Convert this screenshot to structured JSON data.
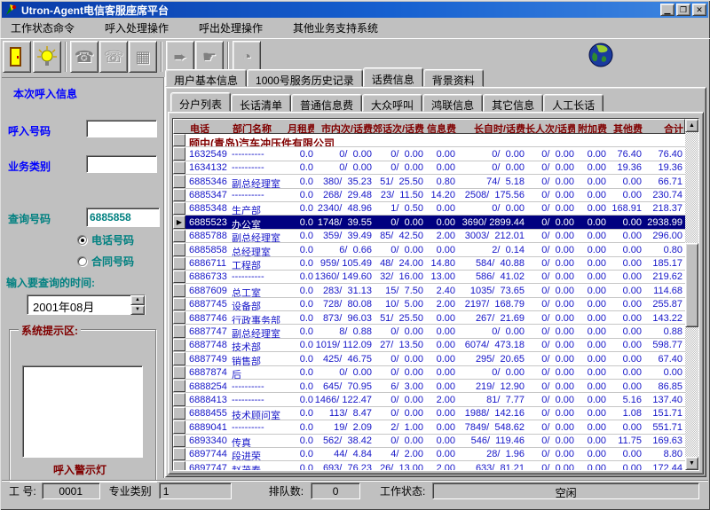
{
  "window": {
    "title": "Utron-Agent电信客服座席平台",
    "minimize": "▁",
    "restore": "❐",
    "close": "✕"
  },
  "menu": {
    "items": [
      "工作状态命令",
      "呼入处理操作",
      "呼出处理操作",
      "其他业务支持系统"
    ]
  },
  "toolbar": {
    "buttons": [
      "exit",
      "lamp",
      "answer-call",
      "hangup-call",
      "keypad",
      "transfer",
      "hand-point",
      "dial"
    ],
    "glyphs": {
      "answer": "☎",
      "hangup": "☏",
      "keypad": "▦",
      "transfer": "➨",
      "hand": "☛",
      "dial": "◔"
    }
  },
  "left_panel": {
    "section_title": "本次呼入信息",
    "caller_number_label": "呼入号码",
    "caller_number_value": "",
    "business_type_label": "业务类别",
    "business_type_value": "",
    "query_number_label": "查询号码",
    "query_number_value": "6885858",
    "radio_phone_label": "电话号码",
    "radio_contract_label": "合同号码",
    "radio_selected": "电话号码",
    "time_label": "输入要查询的时间:",
    "time_value": "2001年08月",
    "prompt_group_label": "系统提示区:",
    "prompt_value": "",
    "warning_label": "呼入警示灯"
  },
  "tabs": {
    "main": [
      "用户基本信息",
      "1000号服务历史记录",
      "话费信息",
      "背景资料"
    ],
    "active_main": "话费信息",
    "sub": [
      "分户列表",
      "长话清单",
      "普通信息费",
      "大众呼叫",
      "鸿联信息",
      "其它信息",
      "人工长话"
    ],
    "active_sub": "分户列表"
  },
  "table": {
    "headers": [
      "电话",
      "部门名称",
      "月租费",
      "市内次/话费",
      "郊话次/话费",
      "信息费",
      "长自时/话费",
      "长人次/话费",
      "附加费",
      "其他费",
      "合计"
    ],
    "group_row": "颐中(青岛)汽车冲压件有限公司",
    "selected_marker": "▶",
    "rows": [
      {
        "cells": [
          "1632549",
          "----------",
          "0.0",
          "0/  0.00",
          "0/  0.00",
          "0.00",
          "0/  0.00",
          "0/  0.00",
          "0.00",
          "76.40",
          "76.40"
        ]
      },
      {
        "cells": [
          "1634132",
          "----------",
          "0.0",
          "0/  0.00",
          "0/  0.00",
          "0.00",
          "0/  0.00",
          "0/  0.00",
          "0.00",
          "19.36",
          "19.36"
        ]
      },
      {
        "cells": [
          "6885346",
          "副总经理室",
          "0.0",
          "380/  35.23",
          "51/  25.50",
          "0.80",
          "74/  5.18",
          "0/  0.00",
          "0.00",
          "0.00",
          "66.71"
        ]
      },
      {
        "cells": [
          "6885347",
          "----------",
          "0.0",
          "268/  29.48",
          "23/  11.50",
          "14.20",
          "2508/  175.56",
          "0/  0.00",
          "0.00",
          "0.00",
          "230.74"
        ]
      },
      {
        "cells": [
          "6885348",
          "生产部",
          "0.0",
          "2340/  48.96",
          "1/  0.50",
          "0.00",
          "0/  0.00",
          "0/  0.00",
          "0.00",
          "168.91",
          "218.37"
        ]
      },
      {
        "cells": [
          "6885523",
          "办公室",
          "0.0",
          "1748/  39.55",
          "0/  0.00",
          "0.00",
          "3690/ 2899.44",
          "0/  0.00",
          "0.00",
          "0.00",
          "2938.99"
        ],
        "selected": true
      },
      {
        "cells": [
          "6885788",
          "副总经理室",
          "0.0",
          "359/  39.49",
          "85/  42.50",
          "2.00",
          "3003/  212.01",
          "0/  0.00",
          "0.00",
          "0.00",
          "296.00"
        ]
      },
      {
        "cells": [
          "6885858",
          "总经理室",
          "0.0",
          "6/  0.66",
          "0/  0.00",
          "0.00",
          "2/  0.14",
          "0/  0.00",
          "0.00",
          "0.00",
          "0.80"
        ]
      },
      {
        "cells": [
          "6886711",
          "工程部",
          "0.0",
          "959/ 105.49",
          "48/  24.00",
          "14.80",
          "584/  40.88",
          "0/  0.00",
          "0.00",
          "0.00",
          "185.17"
        ]
      },
      {
        "cells": [
          "6886733",
          "----------",
          "0.0",
          "1360/ 149.60",
          "32/  16.00",
          "13.00",
          "586/  41.02",
          "0/  0.00",
          "0.00",
          "0.00",
          "219.62"
        ]
      },
      {
        "cells": [
          "6887609",
          "总工室",
          "0.0",
          "283/  31.13",
          "15/  7.50",
          "2.40",
          "1035/  73.65",
          "0/  0.00",
          "0.00",
          "0.00",
          "114.68"
        ]
      },
      {
        "cells": [
          "6887745",
          "设备部",
          "0.0",
          "728/  80.08",
          "10/  5.00",
          "2.00",
          "2197/  168.79",
          "0/  0.00",
          "0.00",
          "0.00",
          "255.87"
        ]
      },
      {
        "cells": [
          "6887746",
          "行政事务部",
          "0.0",
          "873/  96.03",
          "51/  25.50",
          "0.00",
          "267/  21.69",
          "0/  0.00",
          "0.00",
          "0.00",
          "143.22"
        ]
      },
      {
        "cells": [
          "6887747",
          "副总经理室",
          "0.0",
          "8/  0.88",
          "0/  0.00",
          "0.00",
          "0/  0.00",
          "0/  0.00",
          "0.00",
          "0.00",
          "0.88"
        ]
      },
      {
        "cells": [
          "6887748",
          "技术部",
          "0.0",
          "1019/ 112.09",
          "27/  13.50",
          "0.00",
          "6074/  473.18",
          "0/  0.00",
          "0.00",
          "0.00",
          "598.77"
        ]
      },
      {
        "cells": [
          "6887749",
          "销售部",
          "0.0",
          "425/  46.75",
          "0/  0.00",
          "0.00",
          "295/  20.65",
          "0/  0.00",
          "0.00",
          "0.00",
          "67.40"
        ]
      },
      {
        "cells": [
          "6887874",
          "后",
          "0.0",
          "0/  0.00",
          "0/  0.00",
          "0.00",
          "0/  0.00",
          "0/  0.00",
          "0.00",
          "0.00",
          "0.00"
        ]
      },
      {
        "cells": [
          "6888254",
          "----------",
          "0.0",
          "645/  70.95",
          "6/  3.00",
          "0.00",
          "219/  12.90",
          "0/  0.00",
          "0.00",
          "0.00",
          "86.85"
        ]
      },
      {
        "cells": [
          "6888413",
          "----------",
          "0.0",
          "1466/ 122.47",
          "0/  0.00",
          "2.00",
          "81/  7.77",
          "0/  0.00",
          "0.00",
          "5.16",
          "137.40"
        ]
      },
      {
        "cells": [
          "6888455",
          "技术顾问室",
          "0.0",
          "113/  8.47",
          "0/  0.00",
          "0.00",
          "1988/  142.16",
          "0/  0.00",
          "0.00",
          "1.08",
          "151.71"
        ]
      },
      {
        "cells": [
          "6889041",
          "----------",
          "0.0",
          "19/  2.09",
          "2/  1.00",
          "0.00",
          "7849/  548.62",
          "0/  0.00",
          "0.00",
          "0.00",
          "551.71"
        ]
      },
      {
        "cells": [
          "6893340",
          "传真",
          "0.0",
          "562/  38.42",
          "0/  0.00",
          "0.00",
          "546/  119.46",
          "0/  0.00",
          "0.00",
          "11.75",
          "169.63"
        ]
      },
      {
        "cells": [
          "6897744",
          "段进荣",
          "0.0",
          "44/  4.84",
          "4/  2.00",
          "0.00",
          "28/  1.96",
          "0/  0.00",
          "0.00",
          "0.00",
          "8.80"
        ]
      },
      {
        "cells": [
          "6897747",
          "赵茂春",
          "0.0",
          "693/  76.23",
          "26/  13.00",
          "2.00",
          "633/  81.21",
          "0/  0.00",
          "0.00",
          "0.00",
          "172.44"
        ]
      }
    ]
  },
  "status_bar": {
    "agent_label": "工 号:",
    "agent_value": "0001",
    "category_label": "专业类别",
    "category_value": "1",
    "queue_label": "排队数:",
    "queue_value": "0",
    "state_label": "工作状态:",
    "state_value": "空闲"
  }
}
